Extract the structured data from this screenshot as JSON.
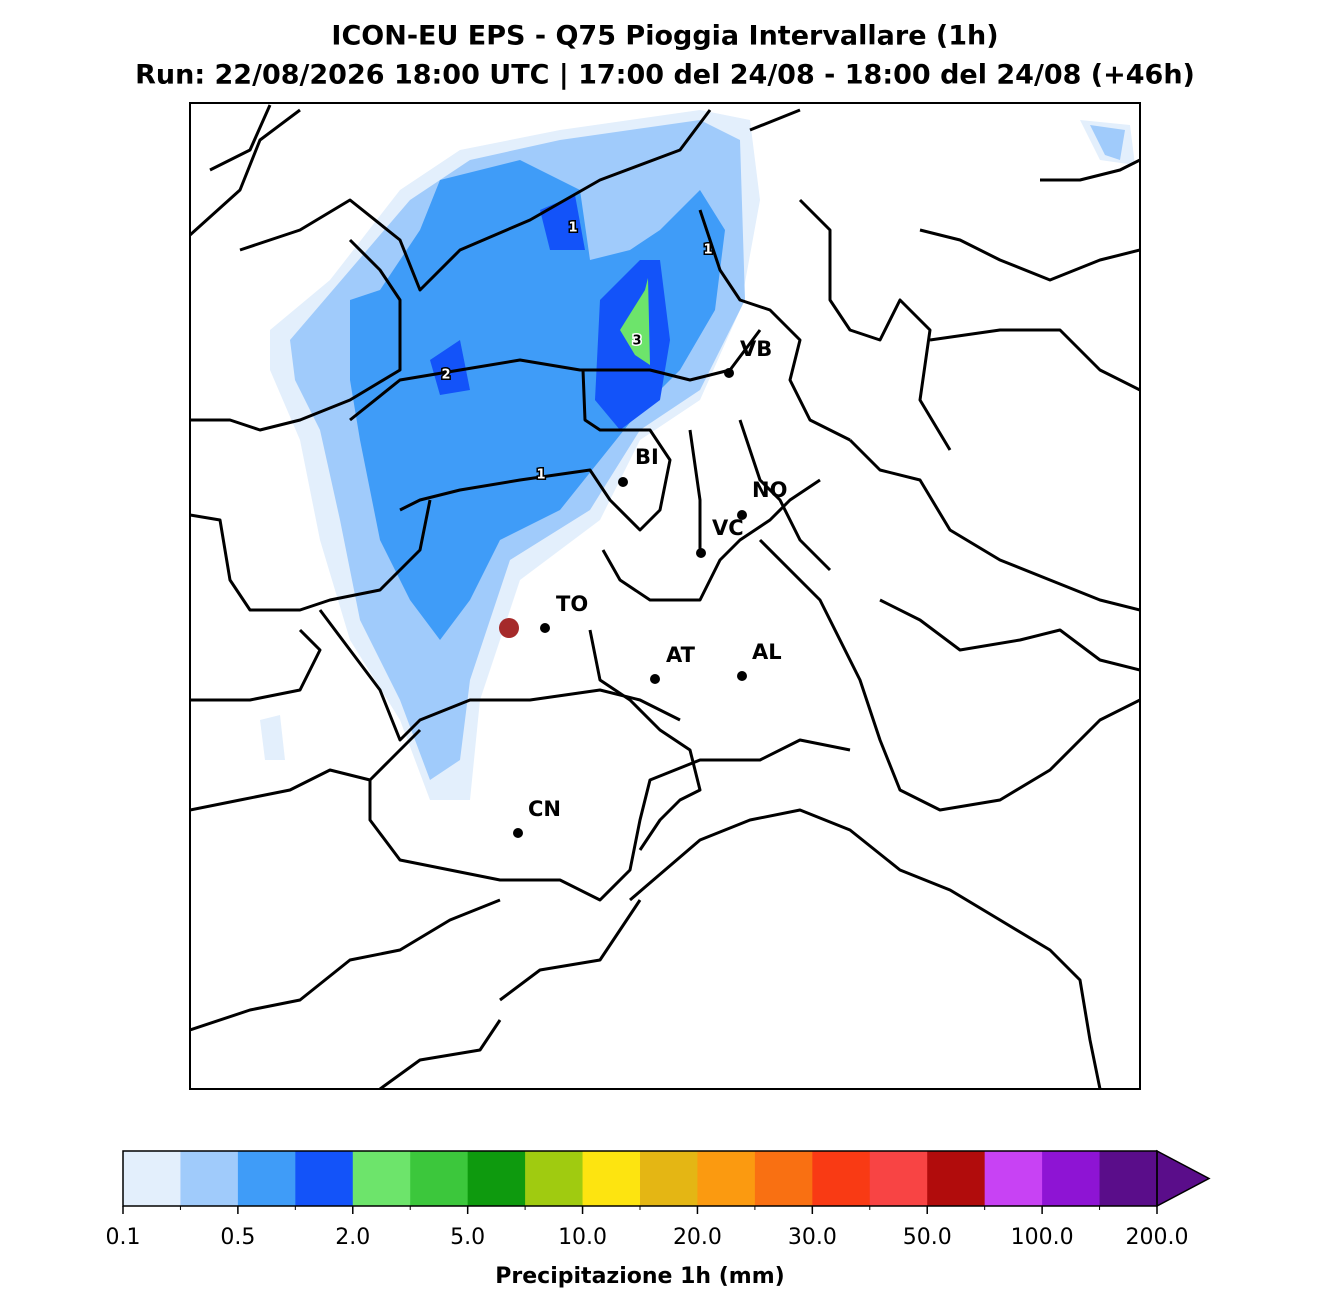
{
  "header": {
    "title": "ICON-EU EPS - Q75 Pioggia Intervallare (1h)",
    "subtitle": "Run: 22/08/2026 18:00 UTC | 17:00 del 24/08 - 18:00 del 24/08 (+46h)"
  },
  "map": {
    "cities": [
      "VB",
      "BI",
      "NO",
      "VC",
      "TO",
      "AT",
      "AL",
      "CN"
    ],
    "contour_labels": [
      "1",
      "1",
      "2",
      "3",
      "1"
    ]
  },
  "colorbar": {
    "label": "Precipitazione 1h (mm)",
    "extend": "max",
    "colors": [
      "#e3effc",
      "#a0cbfb",
      "#3f9cf8",
      "#1353f9",
      "#6de46b",
      "#3cc73c",
      "#0e9a0e",
      "#a0cb10",
      "#fde410",
      "#e4b614",
      "#fb9a10",
      "#f97012",
      "#f93a14",
      "#f84444",
      "#b10c0c",
      "#c842f4",
      "#8e14d4",
      "#5a0d8a"
    ],
    "ticks": [
      0.1,
      0.5,
      {
        "value": 2,
        "label": "2.0"
      },
      {
        "value": 5,
        "label": "5.0"
      },
      {
        "value": 10,
        "label": "10.0"
      },
      {
        "value": 20,
        "label": "20.0"
      },
      {
        "value": 30,
        "label": "30.0"
      },
      {
        "value": 50,
        "label": "50.0"
      },
      {
        "value": 100,
        "label": "100.0"
      },
      {
        "value": 200,
        "label": "200.0"
      }
    ]
  }
}
